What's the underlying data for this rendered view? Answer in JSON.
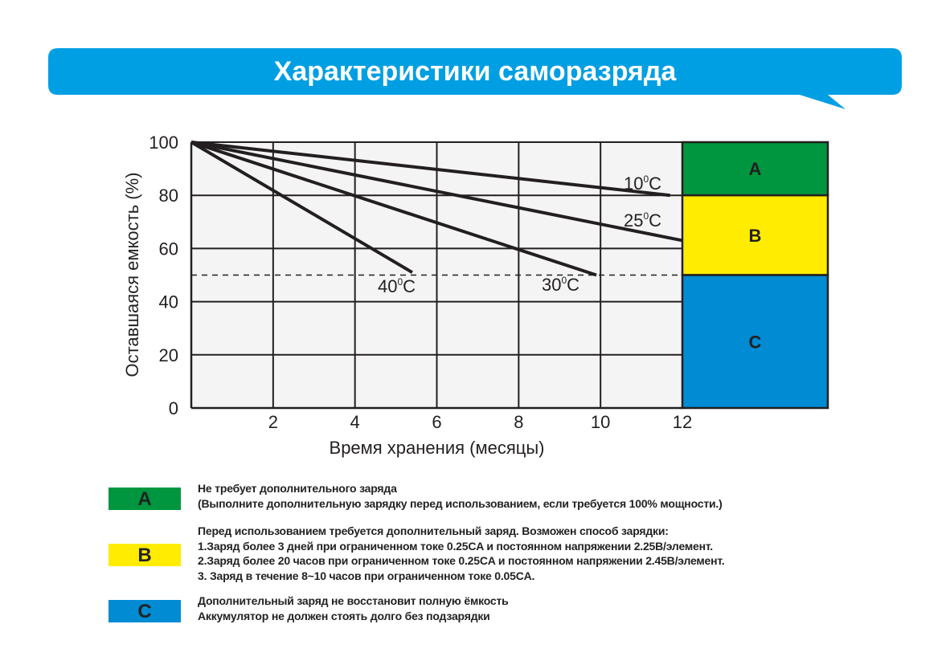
{
  "header": {
    "title": "Характеристики саморазряда",
    "color": "#009fe3"
  },
  "chart_data": {
    "type": "line",
    "title": "",
    "xlabel": "Время хранения (месяцы)",
    "ylabel": "Оставшаяся емкость (%)",
    "xlim": [
      0,
      12
    ],
    "ylim": [
      0,
      100
    ],
    "xticks": [
      "2",
      "4",
      "6",
      "8",
      "10",
      "12"
    ],
    "yticks": [
      "0",
      "20",
      "40",
      "60",
      "80",
      "100"
    ],
    "grid": true,
    "reference_line": {
      "y": 50,
      "style": "dashed"
    },
    "series": [
      {
        "name": "10",
        "unit": "C",
        "x": [
          0,
          11.7
        ],
        "y": [
          100,
          80
        ]
      },
      {
        "name": "25",
        "unit": "C",
        "x": [
          0,
          12
        ],
        "y": [
          100,
          63
        ]
      },
      {
        "name": "30",
        "unit": "C",
        "x": [
          0,
          9.9
        ],
        "y": [
          100,
          50
        ]
      },
      {
        "name": "40",
        "unit": "C",
        "x": [
          0,
          5.4
        ],
        "y": [
          100,
          51
        ]
      }
    ],
    "zones": [
      {
        "label": "A",
        "from": 80,
        "to": 100,
        "color": "#00963f"
      },
      {
        "label": "B",
        "from": 50,
        "to": 80,
        "color": "#ffec00"
      },
      {
        "label": "C",
        "from": 0,
        "to": 50,
        "color": "#008bd2"
      }
    ]
  },
  "legend": [
    {
      "label": "A",
      "color": "#00963f",
      "lines": [
        "Не требует дополнительного заряда",
        "(Выполните дополнительную зарядку перед использованием, если требуется 100% мощности.)"
      ]
    },
    {
      "label": "B",
      "color": "#ffec00",
      "lines": [
        "Перед использованием требуется дополнительный заряд. Возможен способ зарядки:",
        "1.Заряд более 3 дней при ограниченном токе 0.25CA и постоянном напряжении 2.25В/элемент.",
        "2.Заряд более 20 часов при ограниченном токе 0.25CA и постоянном напряжении 2.45В/элемент.",
        "3. Заряд в течение 8~10 часов при ограниченном токе 0.05CA."
      ]
    },
    {
      "label": "C",
      "color": "#008bd2",
      "lines": [
        "Дополнительный заряд не восстановит полную ёмкость",
        "Аккумулятор не должен стоять долго без подзарядки"
      ]
    }
  ]
}
